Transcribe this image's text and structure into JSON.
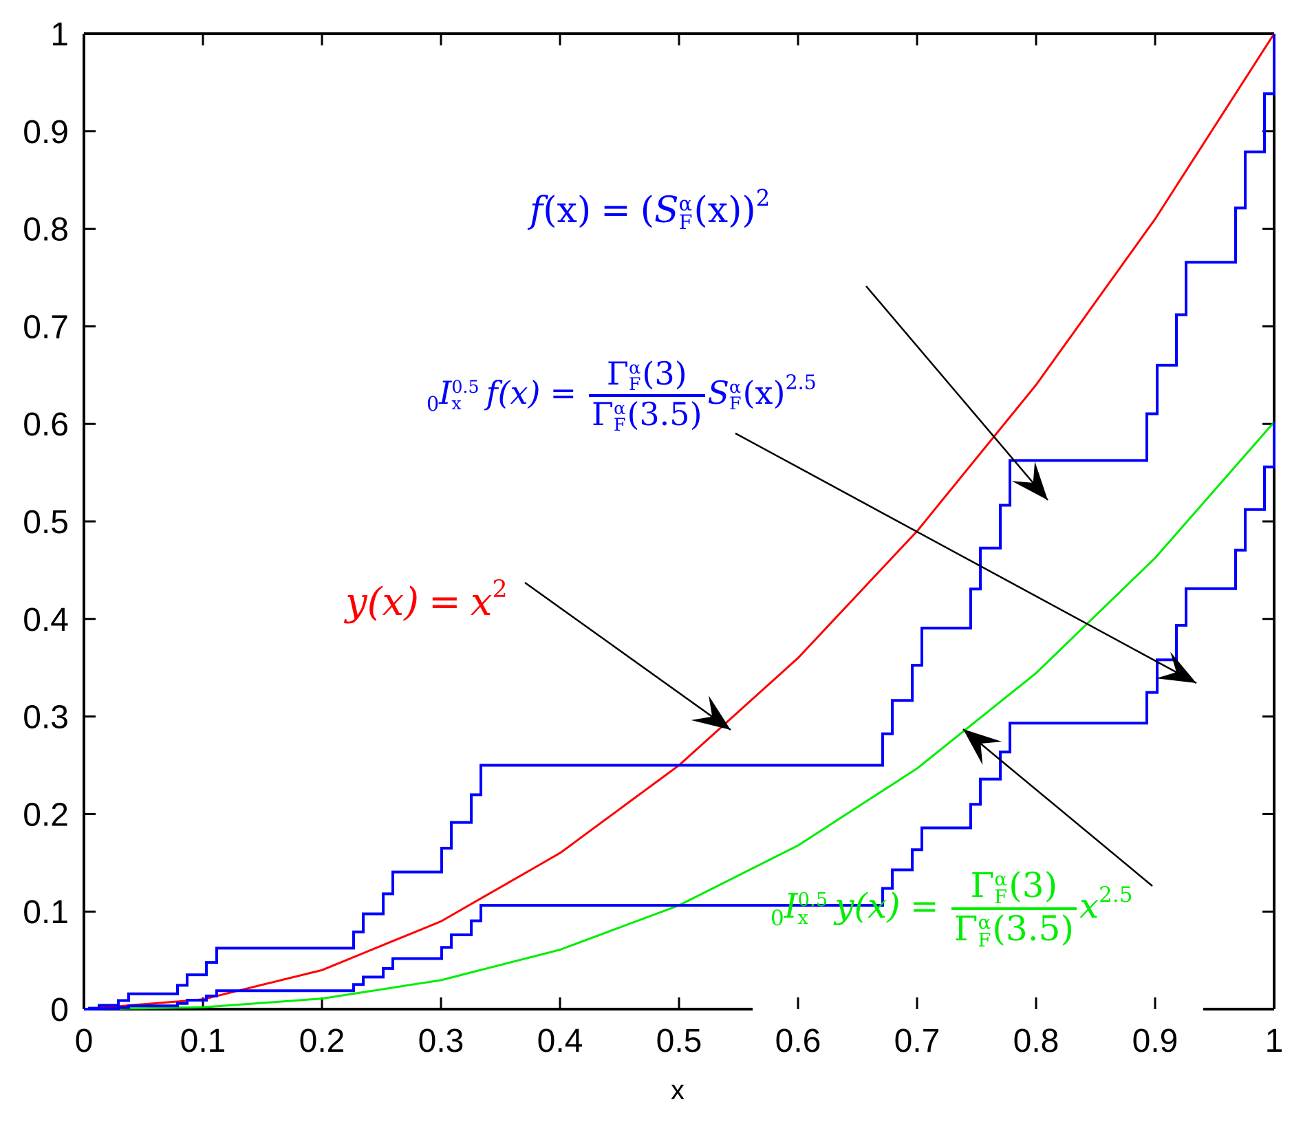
{
  "chart_data": {
    "type": "line",
    "title": "",
    "xlabel": "x",
    "ylabel": "",
    "xlim": [
      0,
      1
    ],
    "ylim": [
      0,
      1
    ],
    "grid": false,
    "legend": "none (inline annotations with arrows)",
    "x_ticks": [
      "0",
      "0.1",
      "0.2",
      "0.3",
      "0.4",
      "0.5",
      "0.6",
      "0.7",
      "0.8",
      "0.9",
      "1"
    ],
    "y_ticks": [
      "0",
      "0.1",
      "0.2",
      "0.3",
      "0.4",
      "0.5",
      "0.6",
      "0.7",
      "0.8",
      "0.9",
      "1"
    ],
    "series": [
      {
        "name": "y(x) = x^2",
        "color": "#ff0000",
        "style": "smooth",
        "x": [
          0,
          0.1,
          0.2,
          0.3,
          0.4,
          0.5,
          0.6,
          0.7,
          0.8,
          0.9,
          1.0
        ],
        "values": [
          0,
          0.01,
          0.04,
          0.09,
          0.16,
          0.25,
          0.36,
          0.49,
          0.64,
          0.81,
          1.0
        ]
      },
      {
        "name": "0I_x^0.5 y(x) = Gamma_F^alpha(3)/Gamma_F^alpha(3.5) x^2.5",
        "color": "#00ee00",
        "style": "smooth",
        "x": [
          0,
          0.1,
          0.2,
          0.3,
          0.4,
          0.5,
          0.6,
          0.7,
          0.8,
          0.9,
          1.0
        ],
        "values": [
          0,
          0.0019,
          0.0108,
          0.0297,
          0.0609,
          0.1064,
          0.1678,
          0.2467,
          0.3445,
          0.4625,
          0.6018
        ]
      },
      {
        "name": "f(x) = (S_F^alpha(x))^2",
        "color": "#0000ff",
        "style": "staircase (squared Cantor function)",
        "plateaus": [
          {
            "x": [
              0.0,
              0.0123
            ],
            "y": 0.0
          },
          {
            "x": [
              0.037,
              0.074
            ],
            "y": 0.0156
          },
          {
            "x": [
              0.111,
              0.222
            ],
            "y": 0.0625
          },
          {
            "x": [
              0.259,
              0.296
            ],
            "y": 0.1406
          },
          {
            "x": [
              0.333,
              0.667
            ],
            "y": 0.25
          },
          {
            "x": [
              0.704,
              0.741
            ],
            "y": 0.3906
          },
          {
            "x": [
              0.778,
              0.889
            ],
            "y": 0.5625
          },
          {
            "x": [
              0.926,
              0.963
            ],
            "y": 0.7656
          },
          {
            "x": [
              1.0,
              1.0
            ],
            "y": 1.0
          }
        ]
      },
      {
        "name": "0I_x^0.5 f(x) = Gamma_F^alpha(3)/Gamma_F^alpha(3.5) S_F^alpha(x)^2.5",
        "color": "#0000ff",
        "style": "staircase (scaled Cantor function^2.5)",
        "plateaus": [
          {
            "x": [
              0.0,
              0.0123
            ],
            "y": 0.0
          },
          {
            "x": [
              0.037,
              0.074
            ],
            "y": 0.0047
          },
          {
            "x": [
              0.111,
              0.222
            ],
            "y": 0.0188
          },
          {
            "x": [
              0.259,
              0.296
            ],
            "y": 0.0516
          },
          {
            "x": [
              0.333,
              0.667
            ],
            "y": 0.1064
          },
          {
            "x": [
              0.704,
              0.741
            ],
            "y": 0.1836
          },
          {
            "x": [
              0.778,
              0.889
            ],
            "y": 0.2932
          },
          {
            "x": [
              0.926,
              0.963
            ],
            "y": 0.4289
          },
          {
            "x": [
              1.0,
              1.0
            ],
            "y": 0.6018
          }
        ]
      }
    ],
    "annotations": [
      {
        "text": "f(x) = (S_F^α(x))^2",
        "color": "#0000ff",
        "arrow_to": [
          0.81,
          0.5625
        ]
      },
      {
        "text": "0I_x^0.5 f(x) = Γ_F^α(3) / Γ_F^α(3.5) · S_F^α(x)^2.5",
        "color": "#0000ff",
        "arrow_to": [
          0.93,
          0.43
        ]
      },
      {
        "text": "y(x) = x^2",
        "color": "#ff0000",
        "arrow_to": [
          0.54,
          0.29
        ]
      },
      {
        "text": "0I_x^0.5 y(x) = Γ_F^α(3) / Γ_F^α(3.5) · x^2.5",
        "color": "#00ee00",
        "arrow_to": [
          0.74,
          0.288
        ]
      }
    ]
  },
  "labels": {
    "xlabel": "x",
    "ann_f": {
      "lhs": "f",
      "arg": "(x)",
      "eq": "=",
      "open": "(",
      "S": "S",
      "alpha": "α",
      "F": "F",
      "arg2": "(x)",
      "close": ")",
      "pow": "2"
    },
    "ann_If": {
      "pre": "0",
      "I": "I",
      "sup": "0.5",
      "sub": "x",
      "f": "f(x)",
      "eq": "=",
      "num": "Γ",
      "num_alpha": "α",
      "num_F": "F",
      "num_arg": "(3)",
      "den": "Γ",
      "den_alpha": "α",
      "den_F": "F",
      "den_arg": "(3.5)",
      "S": "S",
      "S_alpha": "α",
      "S_F": "F",
      "S_arg": "(x)",
      "pow": "2.5"
    },
    "ann_y": {
      "lhs": "y(x)",
      "eq": "=",
      "x": "x",
      "pow": "2"
    },
    "ann_Iy": {
      "pre": "0",
      "I": "I",
      "sup": "0.5",
      "sub": "x",
      "y": "y(x)",
      "eq": "=",
      "num": "Γ",
      "num_alpha": "α",
      "num_F": "F",
      "num_arg": "(3)",
      "den": "Γ",
      "den_alpha": "α",
      "den_F": "F",
      "den_arg": "(3.5)",
      "x": "x",
      "pow": "2.5"
    }
  },
  "colors": {
    "red": "#ff0000",
    "green": "#00ee00",
    "blue": "#0000ff",
    "axis": "#000000"
  }
}
